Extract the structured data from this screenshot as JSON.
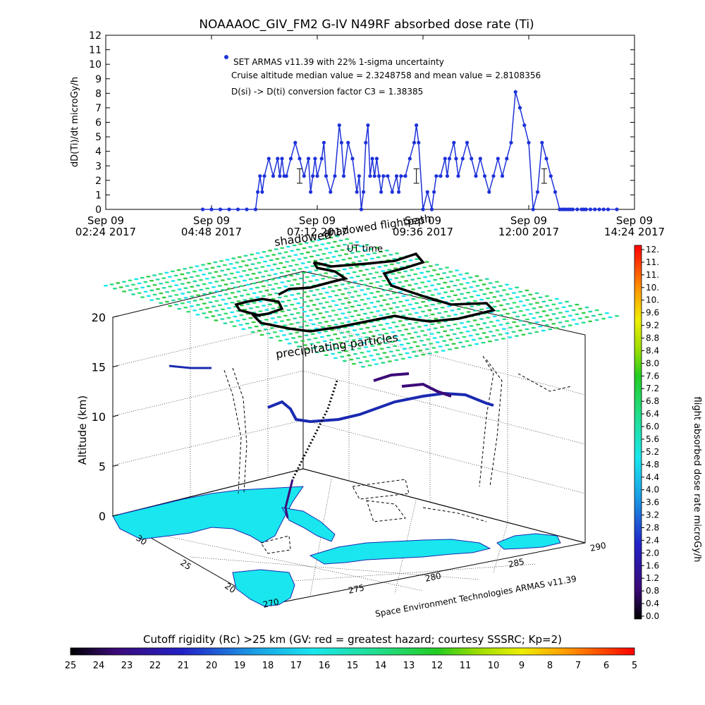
{
  "chart_data": [
    {
      "type": "line",
      "title": "NOAAAOC_GIV_FM2 G-IV    N49RF  absorbed dose rate (Ti)",
      "ylabel": "dD(Ti)/dt microGy/h",
      "xlabel": "",
      "ylim": [
        0,
        12
      ],
      "yticks": [
        "0",
        "1",
        "2",
        "3",
        "4",
        "5",
        "6",
        "7",
        "8",
        "9",
        "10",
        "11",
        "12"
      ],
      "xticks": [
        {
          "l1": "Sep 09",
          "l2": "02:24 2017"
        },
        {
          "l1": "Sep 09",
          "l2": "04:48 2017"
        },
        {
          "l1": "Sep 09",
          "l2": "07:12 2017"
        },
        {
          "l1": "Sep 09",
          "l2": "09:36 2017"
        },
        {
          "l1": "Sep 09",
          "l2": "12:00 2017"
        },
        {
          "l1": "Sep 09",
          "l2": "14:24 2017"
        }
      ],
      "x_hours_range": [
        2.4,
        14.4
      ],
      "annotations": [
        "SET ARMAS v11.39 with 22% 1-sigma uncertainty",
        "Cruise altitude median value = 2.3248758 and mean value = 2.8108356",
        "D(si) -> D(ti) conversion factor C3 = 1.38385"
      ],
      "series": [
        {
          "color": "#1e32d8",
          "x_hours": [
            4.6,
            4.8,
            5.0,
            5.2,
            5.4,
            5.6,
            5.8,
            5.85,
            5.9,
            5.95,
            6.0,
            6.1,
            6.2,
            6.3,
            6.35,
            6.4,
            6.45,
            6.5,
            6.6,
            6.7,
            6.8,
            6.9,
            7.0,
            7.05,
            7.1,
            7.15,
            7.2,
            7.3,
            7.35,
            7.4,
            7.5,
            7.6,
            7.7,
            7.75,
            7.8,
            7.9,
            8.0,
            8.1,
            8.15,
            8.2,
            8.25,
            8.3,
            8.35,
            8.4,
            8.45,
            8.5,
            8.55,
            8.6,
            8.65,
            8.7,
            8.8,
            8.9,
            9.0,
            9.05,
            9.1,
            9.2,
            9.3,
            9.4,
            9.45,
            9.5,
            9.6,
            9.7,
            9.8,
            9.85,
            9.9,
            10.0,
            10.1,
            10.15,
            10.2,
            10.3,
            10.35,
            10.4,
            10.5,
            10.6,
            10.7,
            10.8,
            10.9,
            11.0,
            11.1,
            11.2,
            11.3,
            11.4,
            11.5,
            11.6,
            11.7,
            11.8,
            11.9,
            12.0,
            12.1,
            12.2,
            12.3,
            12.4,
            12.5,
            12.6,
            12.7,
            12.75,
            12.8,
            12.85,
            12.9,
            12.95,
            13.0,
            13.1,
            13.2,
            13.25,
            13.3,
            13.4,
            13.5,
            13.6,
            13.7,
            13.8,
            14.0
          ],
          "values": [
            0,
            0,
            0,
            0,
            0,
            0,
            0,
            1.2,
            2.3,
            1.2,
            2.3,
            3.5,
            2.3,
            3.5,
            2.3,
            3.5,
            2.3,
            2.3,
            3.5,
            4.6,
            3.5,
            2.3,
            3.5,
            1.2,
            2.3,
            3.5,
            2.3,
            3.5,
            4.6,
            2.3,
            1.2,
            2.3,
            5.8,
            4.6,
            2.3,
            4.6,
            3.5,
            1.2,
            2.3,
            0,
            1.2,
            4.6,
            5.8,
            2.3,
            3.5,
            2.3,
            3.5,
            2.3,
            1.2,
            2.3,
            2.3,
            1.2,
            2.3,
            1.2,
            2.3,
            2.3,
            3.5,
            4.6,
            5.8,
            4.6,
            0,
            1.2,
            0,
            1.2,
            2.3,
            2.3,
            3.5,
            2.3,
            3.5,
            4.6,
            3.5,
            2.3,
            3.5,
            4.6,
            3.5,
            2.3,
            3.5,
            2.3,
            1.2,
            2.3,
            3.5,
            2.3,
            3.5,
            4.6,
            8.1,
            7.0,
            5.8,
            4.6,
            0,
            1.2,
            4.6,
            3.5,
            2.3,
            1.2,
            0,
            0,
            0,
            0,
            0,
            0,
            0,
            0,
            0,
            0,
            0,
            0,
            0,
            0,
            0,
            0,
            0
          ],
          "error_bars": [
            {
              "x_hours": 6.8,
              "value": 2.3,
              "err": 0.5
            },
            {
              "x_hours": 9.45,
              "value": 2.3,
              "err": 0.5
            },
            {
              "x_hours": 12.35,
              "value": 2.3,
              "err": 0.5
            }
          ]
        }
      ]
    },
    {
      "type": "scatter",
      "subtype": "3d-flightpath",
      "title": "",
      "zlabel": "Altitude (km)",
      "zlim": [
        0,
        20
      ],
      "zticks": [
        "0",
        "5",
        "10",
        "15",
        "20"
      ],
      "lat_ticks": [
        "20",
        "25",
        "30"
      ],
      "lon_ticks": [
        "270",
        "275",
        "280",
        "285",
        "290"
      ],
      "floating_labels": [
        "shadowed flightpath",
        "UT time",
        "precipitating particles"
      ],
      "credit": "Space Environment Technologies ARMAS v11.39"
    }
  ],
  "colorbar_right": {
    "label": "flight absorbed dose rate microGy/h",
    "ticks": [
      "12.",
      "11.",
      "11.",
      "10.",
      "10.",
      "9.6",
      "9.2",
      "8.8",
      "8.4",
      "8.0",
      "7.6",
      "7.2",
      "6.8",
      "6.4",
      "6.0",
      "5.6",
      "5.2",
      "4.8",
      "4.4",
      "4.0",
      "3.6",
      "3.2",
      "2.8",
      "2.4",
      "2.0",
      "1.6",
      "1.2",
      "0.8",
      "0.4",
      "0.0"
    ]
  },
  "colorbar_bottom": {
    "title": "Cutoff rigidity (Rc) >25 km (GV: red = greatest hazard; courtesy SSSRC; Kp=2)",
    "ticks": [
      "25",
      "24",
      "23",
      "22",
      "21",
      "20",
      "19",
      "18",
      "17",
      "16",
      "15",
      "14",
      "13",
      "12",
      "11",
      "10",
      "9",
      "8",
      "7",
      "6",
      "5"
    ]
  },
  "colors": {
    "data_blue": "#1e32d8",
    "ocean_land_cyan": "#19e6ee",
    "flight_dark": "#000000"
  }
}
